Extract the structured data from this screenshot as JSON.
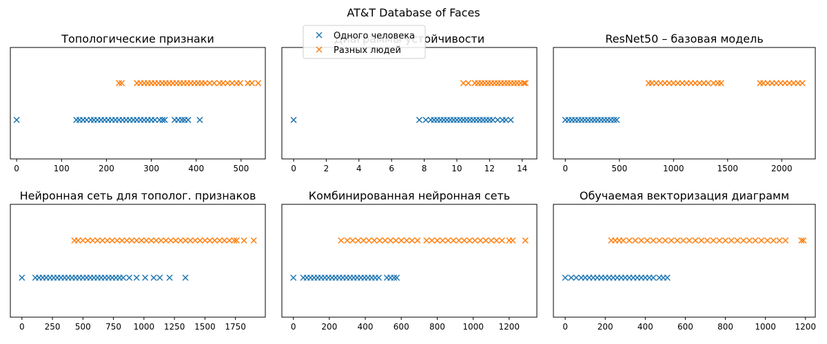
{
  "figure": {
    "suptitle": "AT&T Database of Faces",
    "colors": {
      "same": "#1f77b4",
      "diff": "#ff7f0e"
    }
  },
  "legend": {
    "placement": "upper-left of top-middle panel",
    "entries": [
      {
        "name": "Одного человека",
        "color": "#1f77b4",
        "marker": "x"
      },
      {
        "name": "Разных людей",
        "color": "#ff7f0e",
        "marker": "x"
      }
    ]
  },
  "chart_data": [
    {
      "type": "scatter",
      "title": "Топологические признаки",
      "xlim": [
        -14,
        554
      ],
      "xticks": [
        0,
        100,
        200,
        300,
        400,
        500
      ],
      "tick_labels": [
        "0",
        "100",
        "200",
        "300",
        "400",
        "500"
      ],
      "series": [
        {
          "name": "Одного человека",
          "y": 0,
          "color": "#1f77b4",
          "x": [
            0,
            133,
            140,
            148,
            156,
            165,
            172,
            180,
            188,
            196,
            204,
            212,
            220,
            228,
            236,
            244,
            252,
            260,
            268,
            276,
            284,
            292,
            300,
            308,
            318,
            325,
            330,
            352,
            360,
            368,
            374,
            382,
            408
          ]
        },
        {
          "name": "Разных людей",
          "y": 1,
          "color": "#ff7f0e",
          "x": [
            228,
            234,
            268,
            276,
            284,
            292,
            300,
            308,
            316,
            324,
            332,
            340,
            348,
            356,
            364,
            372,
            380,
            388,
            396,
            404,
            412,
            420,
            430,
            440,
            452,
            460,
            470,
            480,
            490,
            498,
            515,
            524,
            538
          ]
        }
      ]
    },
    {
      "type": "scatter",
      "title": "Диаграммы устойчивости",
      "xlim": [
        -0.72,
        14.9
      ],
      "xticks": [
        0,
        2,
        4,
        6,
        8,
        10,
        12,
        14
      ],
      "tick_labels": [
        "0",
        "2",
        "4",
        "6",
        "8",
        "10",
        "12",
        "14"
      ],
      "series": [
        {
          "name": "Одного человека",
          "y": 0,
          "color": "#1f77b4",
          "x": [
            0,
            7.7,
            8.1,
            8.4,
            8.6,
            8.8,
            9.0,
            9.2,
            9.4,
            9.6,
            9.8,
            10.0,
            10.2,
            10.4,
            10.6,
            10.8,
            11.0,
            11.2,
            11.4,
            11.6,
            11.8,
            12.0,
            12.2,
            12.5,
            12.8,
            13.0,
            13.3
          ]
        },
        {
          "name": "Разных людей",
          "y": 1,
          "color": "#ff7f0e",
          "x": [
            10.4,
            10.7,
            11.1,
            11.3,
            11.5,
            11.7,
            11.9,
            12.1,
            12.3,
            12.5,
            12.7,
            12.9,
            13.1,
            13.3,
            13.5,
            13.7,
            13.9,
            14.1,
            14.2
          ]
        }
      ]
    },
    {
      "type": "scatter",
      "title": "ResNet50 – базовая модель",
      "xlim": [
        -110,
        2310
      ],
      "xticks": [
        0,
        500,
        1000,
        1500,
        2000
      ],
      "tick_labels": [
        "0",
        "500",
        "1000",
        "1500",
        "2000"
      ],
      "series": [
        {
          "name": "Одного человека",
          "y": 0,
          "color": "#1f77b4",
          "x": [
            0,
            30,
            60,
            90,
            120,
            150,
            180,
            210,
            240,
            270,
            300,
            330,
            360,
            390,
            420,
            450,
            475
          ]
        },
        {
          "name": "Разных людей",
          "y": 1,
          "color": "#ff7f0e",
          "x": [
            770,
            800,
            840,
            880,
            920,
            960,
            1000,
            1040,
            1080,
            1120,
            1160,
            1200,
            1240,
            1280,
            1320,
            1370,
            1410,
            1440,
            1800,
            1830,
            1870,
            1910,
            1950,
            1990,
            2030,
            2070,
            2110,
            2150,
            2190
          ]
        }
      ]
    },
    {
      "type": "scatter",
      "title": "Нейронная сеть для тополог. признаков",
      "xlim": [
        -95,
        1995
      ],
      "xticks": [
        0,
        250,
        500,
        750,
        1000,
        1250,
        1500,
        1750
      ],
      "tick_labels": [
        "0",
        "250",
        "500",
        "750",
        "1000",
        "1250",
        "1500",
        "1750"
      ],
      "series": [
        {
          "name": "Одного человека",
          "y": 0,
          "color": "#1f77b4",
          "x": [
            0,
            110,
            140,
            170,
            200,
            230,
            260,
            290,
            320,
            350,
            380,
            410,
            440,
            470,
            500,
            530,
            560,
            590,
            620,
            650,
            680,
            710,
            740,
            770,
            800,
            830,
            880,
            940,
            1010,
            1080,
            1130,
            1210,
            1340
          ]
        },
        {
          "name": "Разных людей",
          "y": 1,
          "color": "#ff7f0e",
          "x": [
            430,
            460,
            500,
            540,
            580,
            620,
            660,
            700,
            740,
            780,
            820,
            860,
            900,
            940,
            980,
            1020,
            1060,
            1100,
            1140,
            1180,
            1220,
            1260,
            1300,
            1340,
            1380,
            1420,
            1460,
            1500,
            1540,
            1580,
            1620,
            1660,
            1700,
            1740,
            1760,
            1820,
            1900
          ]
        }
      ]
    },
    {
      "type": "scatter",
      "title": "Комбинированная нейронная сеть",
      "xlim": [
        -64,
        1354
      ],
      "xticks": [
        0,
        200,
        400,
        600,
        800,
        1000,
        1200
      ],
      "tick_labels": [
        "0",
        "200",
        "400",
        "600",
        "800",
        "1000",
        "1200"
      ],
      "series": [
        {
          "name": "Одного человека",
          "y": 0,
          "color": "#1f77b4",
          "x": [
            0,
            55,
            75,
            95,
            115,
            135,
            155,
            175,
            195,
            215,
            235,
            255,
            275,
            295,
            315,
            335,
            355,
            375,
            395,
            415,
            435,
            455,
            475,
            520,
            540,
            560,
            575
          ]
        },
        {
          "name": "Разных людей",
          "y": 1,
          "color": "#ff7f0e",
          "x": [
            265,
            300,
            330,
            360,
            390,
            420,
            450,
            480,
            510,
            540,
            570,
            600,
            630,
            660,
            690,
            740,
            770,
            800,
            830,
            860,
            890,
            920,
            950,
            980,
            1010,
            1040,
            1070,
            1100,
            1130,
            1160,
            1200,
            1220,
            1290
          ]
        }
      ]
    },
    {
      "type": "scatter",
      "title": "Обучаемая векторизация диаграмм",
      "xlim": [
        -59,
        1249
      ],
      "xticks": [
        0,
        200,
        400,
        600,
        800,
        1000,
        1200
      ],
      "tick_labels": [
        "0",
        "200",
        "400",
        "600",
        "800",
        "1000",
        "1200"
      ],
      "series": [
        {
          "name": "Одного человека",
          "y": 0,
          "color": "#1f77b4",
          "x": [
            0,
            30,
            55,
            80,
            100,
            120,
            140,
            160,
            180,
            200,
            220,
            240,
            260,
            280,
            300,
            320,
            340,
            360,
            380,
            400,
            420,
            440,
            470,
            490,
            510
          ]
        },
        {
          "name": "Разных людей",
          "y": 1,
          "color": "#ff7f0e",
          "x": [
            230,
            250,
            270,
            290,
            320,
            350,
            380,
            410,
            440,
            470,
            500,
            530,
            560,
            590,
            620,
            650,
            680,
            710,
            740,
            770,
            800,
            830,
            860,
            890,
            920,
            950,
            980,
            1010,
            1040,
            1070,
            1100,
            1180,
            1190
          ]
        }
      ]
    }
  ]
}
